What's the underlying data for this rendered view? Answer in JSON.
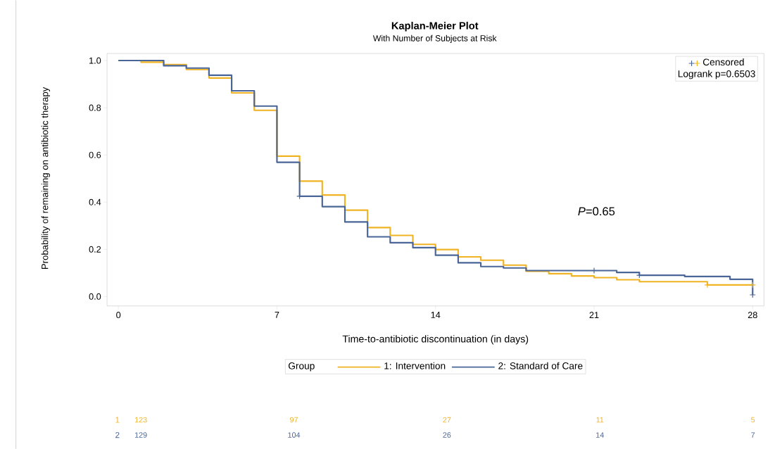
{
  "chart_data": {
    "type": "step",
    "title": "Kaplan-Meier Plot",
    "subtitle": "With Number of Subjects at Risk",
    "xlabel": "Time-to-antibiotic discontinuation (in days)",
    "ylabel": "Probability of remaining on antibiotic therapy",
    "legend_title": "Group",
    "legend": "bottom",
    "grid": false,
    "line_style": "solid",
    "xlim": [
      -0.5,
      28.5
    ],
    "xticks": [
      0,
      7,
      14,
      21,
      28
    ],
    "ylim": [
      -0.04,
      1.03
    ],
    "yticks": [
      {
        "value": 0,
        "label": "0.0"
      },
      {
        "value": 0.2,
        "label": "0.2"
      },
      {
        "value": 0.4,
        "label": "0.4"
      },
      {
        "value": 0.6,
        "label": "0.6"
      },
      {
        "value": 0.8,
        "label": "0.8"
      },
      {
        "value": 1,
        "label": "1.0"
      }
    ],
    "series": [
      {
        "name": "1: Intervention",
        "color": "#f0b323",
        "x": [
          0,
          1,
          2,
          3,
          4,
          5,
          6,
          7,
          8,
          9,
          10,
          11,
          12,
          13,
          14,
          15,
          16,
          17,
          18,
          19,
          20,
          21,
          22,
          23,
          26,
          28
        ],
        "values": [
          1.0,
          0.993,
          0.983,
          0.962,
          0.926,
          0.863,
          0.789,
          0.595,
          0.489,
          0.43,
          0.366,
          0.292,
          0.259,
          0.221,
          0.199,
          0.168,
          0.154,
          0.133,
          0.107,
          0.097,
          0.087,
          0.08,
          0.071,
          0.063,
          0.049,
          0.049
        ]
      },
      {
        "name": "2: Standard of Care",
        "color": "#4a6597",
        "x": [
          0,
          2,
          3,
          4,
          5,
          6,
          7,
          8,
          9,
          10,
          11,
          12,
          13,
          14,
          15,
          16,
          17,
          18,
          22,
          23,
          25,
          27,
          28
        ],
        "values": [
          1.0,
          0.978,
          0.968,
          0.938,
          0.872,
          0.807,
          0.569,
          0.425,
          0.381,
          0.316,
          0.253,
          0.228,
          0.207,
          0.175,
          0.143,
          0.127,
          0.121,
          0.11,
          0.102,
          0.09,
          0.085,
          0.073,
          0.007
        ]
      },
      {
        "name": "Censored",
        "type": "scatter",
        "marker": "cross",
        "x": [
          8,
          21,
          23,
          28,
          26,
          28
        ],
        "values": [
          0.425,
          0.11,
          0.09,
          0.007,
          0.049,
          0.049
        ],
        "colors": [
          "#4a6597",
          "#4a6597",
          "#4a6597",
          "#4a6597",
          "#f0b323",
          "#f0b323"
        ]
      }
    ],
    "annotations": [
      "*P*=0.65",
      "Logrank p=0.6503",
      "1",
      "2",
      "123",
      "97",
      "27",
      "11",
      "5",
      "129",
      "104",
      "26",
      "14",
      "7"
    ]
  }
}
